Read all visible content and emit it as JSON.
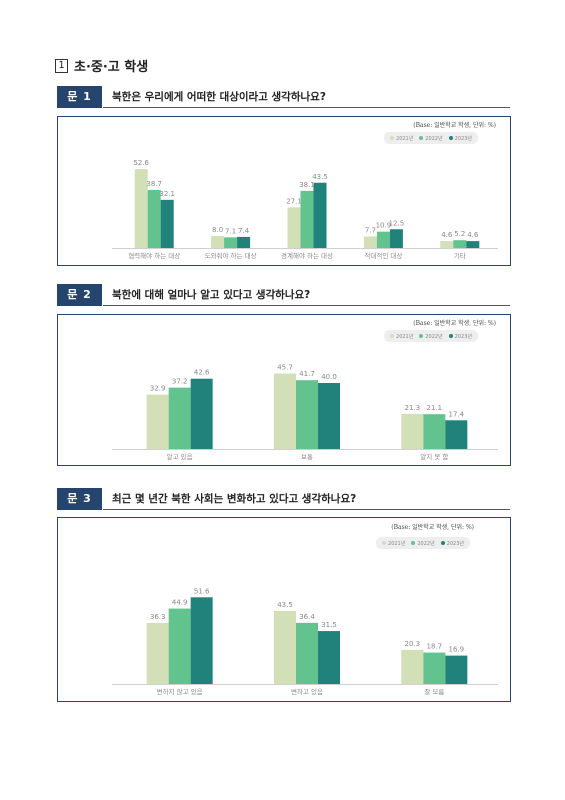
{
  "section": {
    "number": "1",
    "title": "초·중·고 학생"
  },
  "legend_years": [
    "2021년",
    "2022년",
    "2023년"
  ],
  "colors": {
    "y2021": "#d2dfb7",
    "y2022": "#63c38e",
    "y2023": "#20827a",
    "header": "#25446e"
  },
  "questions": [
    {
      "label": "문 1",
      "text": "북한은 우리에게 어떠한 대상이라고 생각하나요?",
      "base": "(Base: 일반학교 학생, 단위: %)"
    },
    {
      "label": "문 2",
      "text": "북한에 대해 얼마나 알고 있다고 생각하나요?",
      "base": "(Base: 일반학교 학생, 단위: %)"
    },
    {
      "label": "문 3",
      "text": "최근 몇 년간 북한 사회는 변화하고 있다고 생각하나요?",
      "base": "(Base: 일반학교 학생, 단위: %)"
    }
  ],
  "chart_data": [
    {
      "type": "bar",
      "categories": [
        "협력해야 하는 대상",
        "도와줘야 하는 대상",
        "경계해야 하는 대상",
        "적대적인 대상",
        "기타"
      ],
      "series": [
        {
          "name": "2021년",
          "values": [
            52.6,
            8.0,
            27.1,
            7.7,
            4.6
          ]
        },
        {
          "name": "2022년",
          "values": [
            38.7,
            7.1,
            38.1,
            10.9,
            5.2
          ]
        },
        {
          "name": "2023년",
          "values": [
            32.1,
            7.4,
            43.5,
            12.5,
            4.6
          ]
        }
      ],
      "ylim": [
        0,
        60
      ]
    },
    {
      "type": "bar",
      "categories": [
        "알고 있음",
        "보통",
        "알지 못 함"
      ],
      "series": [
        {
          "name": "2021년",
          "values": [
            32.9,
            45.7,
            21.3
          ]
        },
        {
          "name": "2022년",
          "values": [
            37.2,
            41.7,
            21.1
          ]
        },
        {
          "name": "2023년",
          "values": [
            42.6,
            40.0,
            17.4
          ]
        }
      ],
      "ylim": [
        0,
        60
      ]
    },
    {
      "type": "bar",
      "categories": [
        "변하지 않고 있음",
        "변하고 있음",
        "잘 모름"
      ],
      "series": [
        {
          "name": "2021년",
          "values": [
            36.3,
            43.5,
            20.3
          ]
        },
        {
          "name": "2022년",
          "values": [
            44.9,
            36.4,
            18.7
          ]
        },
        {
          "name": "2023년",
          "values": [
            51.6,
            31.5,
            16.9
          ]
        }
      ],
      "ylim": [
        0,
        60
      ]
    }
  ]
}
